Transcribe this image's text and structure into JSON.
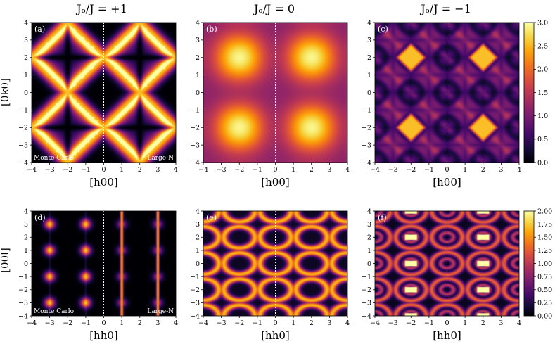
{
  "figure": {
    "column_titles": [
      "Jₒ/J = +1",
      "Jₒ/J = 0",
      "Jₒ/J = −1"
    ],
    "row1_ylabel": "[0k0]",
    "row2_ylabel": "[00l]",
    "row1_xlabel": "[h00]",
    "row2_xlabel": "[hh0]",
    "corner_left": "Monte Carlo",
    "corner_right": "Large-N"
  },
  "colors": {
    "colormap": "inferno",
    "divider": "#ffffff"
  },
  "chart_data": [
    {
      "type": "heatmap",
      "tag": "(a)",
      "row": 0,
      "col": 0,
      "pattern": "pinch-diamond",
      "xlabel": "[h00]",
      "ylabel": "[0k0]",
      "xlim": [
        -4,
        4
      ],
      "ylim": [
        -4,
        4
      ],
      "xticks": [
        -4,
        -3,
        -2,
        -1,
        0,
        1,
        2,
        3,
        4
      ],
      "yticks": [
        -4,
        -3,
        -2,
        -1,
        0,
        1,
        2,
        3,
        4
      ],
      "split": true,
      "left": "Monte Carlo",
      "right": "Large-N",
      "clim": [
        0,
        3.0
      ]
    },
    {
      "type": "heatmap",
      "tag": "(b)",
      "row": 0,
      "col": 1,
      "pattern": "cos-sum",
      "xlabel": "[h00]",
      "ylabel": "",
      "xlim": [
        -4,
        4
      ],
      "ylim": [
        -4,
        4
      ],
      "xticks": [
        -4,
        -3,
        -2,
        -1,
        0,
        1,
        2,
        3,
        4
      ],
      "yticks": [
        -4,
        -3,
        -2,
        -1,
        0,
        1,
        2,
        3,
        4
      ],
      "split": true,
      "clim": [
        0,
        3.0
      ]
    },
    {
      "type": "heatmap",
      "tag": "(c)",
      "row": 0,
      "col": 2,
      "pattern": "bright-squares",
      "xlabel": "[h00]",
      "ylabel": "",
      "xlim": [
        -4,
        4
      ],
      "ylim": [
        -4,
        4
      ],
      "xticks": [
        -4,
        -3,
        -2,
        -1,
        0,
        1,
        2,
        3,
        4
      ],
      "yticks": [
        -4,
        -3,
        -2,
        -1,
        0,
        1,
        2,
        3,
        4
      ],
      "split": true,
      "clim": [
        0,
        3.0
      ],
      "colorbar": {
        "min": 0.0,
        "max": 3.0,
        "ticks": [
          "0.0",
          "0.5",
          "1.0",
          "1.5",
          "2.0",
          "2.5",
          "3.0"
        ]
      }
    },
    {
      "type": "heatmap",
      "tag": "(d)",
      "row": 1,
      "col": 0,
      "pattern": "spots-lines",
      "xlabel": "[hh0]",
      "ylabel": "[00l]",
      "xlim": [
        -4,
        4
      ],
      "ylim": [
        -4,
        4
      ],
      "xticks": [
        -4,
        -3,
        -2,
        -1,
        0,
        1,
        2,
        3,
        4
      ],
      "yticks": [
        -4,
        -3,
        -2,
        -1,
        0,
        1,
        2,
        3,
        4
      ],
      "split": true,
      "left": "Monte Carlo",
      "right": "Large-N",
      "clim": [
        0,
        2.0
      ]
    },
    {
      "type": "heatmap",
      "tag": "(e)",
      "row": 1,
      "col": 1,
      "pattern": "rings",
      "xlabel": "[hh0]",
      "ylabel": "",
      "xlim": [
        -4,
        4
      ],
      "ylim": [
        -4,
        4
      ],
      "xticks": [
        -4,
        -3,
        -2,
        -1,
        0,
        1,
        2,
        3,
        4
      ],
      "yticks": [
        -4,
        -3,
        -2,
        -1,
        0,
        1,
        2,
        3,
        4
      ],
      "split": true,
      "clim": [
        0,
        2.0
      ]
    },
    {
      "type": "heatmap",
      "tag": "(f)",
      "row": 1,
      "col": 2,
      "pattern": "rings-bright",
      "xlabel": "[hh0]",
      "ylabel": "",
      "xlim": [
        -4,
        4
      ],
      "ylim": [
        -4,
        4
      ],
      "xticks": [
        -4,
        -3,
        -2,
        -1,
        0,
        1,
        2,
        3,
        4
      ],
      "yticks": [
        -4,
        -3,
        -2,
        -1,
        0,
        1,
        2,
        3,
        4
      ],
      "split": true,
      "clim": [
        0,
        2.0
      ],
      "colorbar": {
        "min": 0.0,
        "max": 2.0,
        "ticks": [
          "0.00",
          "0.25",
          "0.50",
          "0.75",
          "1.00",
          "1.25",
          "1.50",
          "1.75",
          "2.00"
        ]
      }
    }
  ]
}
